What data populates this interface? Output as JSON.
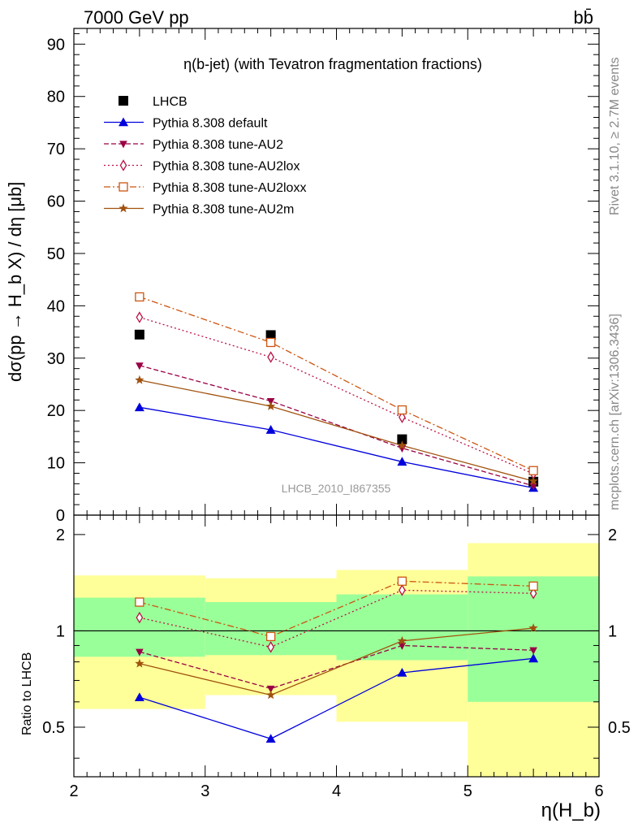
{
  "header": {
    "energy_label": "7000 GeV pp",
    "process_label": "bb̄"
  },
  "side_labels": {
    "rivet": "Rivet 3.1.10, ≥ 2.7M events",
    "mcplots": "mcplots.cern.ch [arXiv:1306.3436]"
  },
  "watermark": "LHCB_2010_I867355",
  "colors": {
    "lhcb": "#000000",
    "default": "#0000dd",
    "au2": "#990044",
    "au2lox": "#bb1144",
    "au2loxx": "#cc5511",
    "au2m": "#a0520e",
    "band_inner": "#99ff99",
    "band_outer": "#ffff99"
  },
  "chart_data": [
    {
      "type": "scatter",
      "panel": "main",
      "title": "η(b-jet) (with Tevatron fragmentation fractions)",
      "xlabel": "η(H_b)",
      "ylabel": "dσ(pp → H_b X) / dη [μb]",
      "xlim": [
        2,
        6
      ],
      "ylim": [
        0,
        93
      ],
      "x_ticks": [
        "2",
        "3",
        "4",
        "5",
        "6"
      ],
      "y_ticks": [
        "0",
        "10",
        "20",
        "30",
        "40",
        "50",
        "60",
        "70",
        "80",
        "90"
      ],
      "legend_position": "top-left",
      "x": [
        2.5,
        3.5,
        4.5,
        5.5
      ],
      "series": [
        {
          "name": "LHCB",
          "key": "lhcb",
          "marker": "square-filled",
          "line": "none",
          "values": [
            34.5,
            34.4,
            14.5,
            6.4
          ]
        },
        {
          "name": "Pythia 8.308 default",
          "key": "default",
          "marker": "triangle-up-filled",
          "line": "solid",
          "values": [
            20.6,
            16.3,
            10.2,
            5.2
          ]
        },
        {
          "name": "Pythia 8.308 tune-AU2",
          "key": "au2",
          "marker": "triangle-down-filled",
          "line": "dashed",
          "values": [
            28.6,
            21.8,
            12.8,
            5.6
          ]
        },
        {
          "name": "Pythia 8.308 tune-AU2lox",
          "key": "au2lox",
          "marker": "diamond-open",
          "line": "dotted",
          "values": [
            37.8,
            30.2,
            18.7,
            7.9
          ]
        },
        {
          "name": "Pythia 8.308 tune-AU2loxx",
          "key": "au2loxx",
          "marker": "square-open",
          "line": "dashdot",
          "values": [
            41.7,
            33.0,
            20.1,
            8.5
          ]
        },
        {
          "name": "Pythia 8.308 tune-AU2m",
          "key": "au2m",
          "marker": "star",
          "line": "solid",
          "values": [
            25.8,
            20.8,
            13.3,
            6.5
          ]
        }
      ]
    },
    {
      "type": "line",
      "panel": "ratio",
      "ylabel": "Ratio to LHCB",
      "xlabel": "η(H_b)",
      "xlim": [
        2,
        6
      ],
      "ylim": [
        0.35,
        2.3
      ],
      "y_scale": "log",
      "x_ticks": [
        "2",
        "3",
        "4",
        "5",
        "6"
      ],
      "y_ticks": [
        "0.5",
        "1",
        "2"
      ],
      "reference_line": 1,
      "bands": [
        {
          "x": [
            2,
            3
          ],
          "inner": [
            0.83,
            1.27
          ],
          "outer": [
            0.57,
            1.49
          ]
        },
        {
          "x": [
            3,
            4
          ],
          "inner": [
            0.84,
            1.23
          ],
          "outer": [
            0.63,
            1.46
          ]
        },
        {
          "x": [
            4,
            5
          ],
          "inner": [
            0.81,
            1.3
          ],
          "outer": [
            0.52,
            1.55
          ]
        },
        {
          "x": [
            5,
            6
          ],
          "inner": [
            0.6,
            1.48
          ],
          "outer": [
            0.35,
            1.88
          ]
        }
      ],
      "x": [
        2.5,
        3.5,
        4.5,
        5.5
      ],
      "series": [
        {
          "key": "default",
          "marker": "triangle-up-filled",
          "line": "solid",
          "values": [
            0.62,
            0.46,
            0.74,
            0.82
          ]
        },
        {
          "key": "au2",
          "marker": "triangle-down-filled",
          "line": "dashed",
          "values": [
            0.86,
            0.66,
            0.9,
            0.87
          ]
        },
        {
          "key": "au2lox",
          "marker": "diamond-open",
          "line": "dotted",
          "values": [
            1.1,
            0.89,
            1.34,
            1.31
          ]
        },
        {
          "key": "au2loxx",
          "marker": "square-open",
          "line": "dashdot",
          "values": [
            1.23,
            0.96,
            1.43,
            1.38
          ]
        },
        {
          "key": "au2m",
          "marker": "star",
          "line": "solid",
          "values": [
            0.79,
            0.63,
            0.93,
            1.02
          ]
        }
      ]
    }
  ]
}
